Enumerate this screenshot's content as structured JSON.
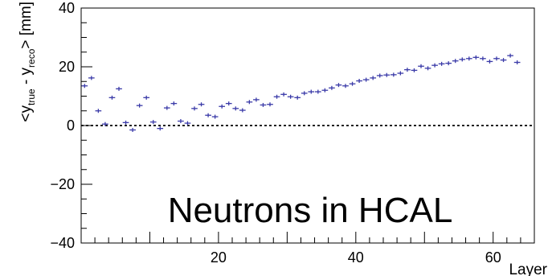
{
  "chart_data": {
    "type": "scatter",
    "title": "",
    "xlabel": "Layer",
    "ylabel": {
      "parts": [
        {
          "text": "<y",
          "sub": false
        },
        {
          "text": "true",
          "sub": true
        },
        {
          "text": " - y",
          "sub": false
        },
        {
          "text": "reco",
          "sub": true
        },
        {
          "text": "> [mm]",
          "sub": false
        }
      ]
    },
    "annotation": "Neutrons in HCAL",
    "xlim": [
      0,
      66
    ],
    "ylim": [
      -40,
      40
    ],
    "x_ticks": [
      {
        "value": 20,
        "label": "20"
      },
      {
        "value": 40,
        "label": "40"
      },
      {
        "value": 60,
        "label": "60"
      }
    ],
    "y_ticks": [
      {
        "value": -40,
        "label": "−40"
      },
      {
        "value": -20,
        "label": "−20"
      },
      {
        "value": 0,
        "label": "0"
      },
      {
        "value": 20,
        "label": "20"
      },
      {
        "value": 40,
        "label": "40"
      }
    ],
    "reference_line": {
      "y": 0,
      "style": "dotted"
    },
    "marker_color": "#3a3aa8",
    "points": [
      {
        "x": 0.5,
        "y": 13.5
      },
      {
        "x": 1.5,
        "y": 16.2
      },
      {
        "x": 2.5,
        "y": 5.0
      },
      {
        "x": 3.5,
        "y": 0.5
      },
      {
        "x": 4.5,
        "y": 9.5
      },
      {
        "x": 5.5,
        "y": 12.5
      },
      {
        "x": 6.5,
        "y": 1.0
      },
      {
        "x": 7.5,
        "y": -1.5
      },
      {
        "x": 8.5,
        "y": 6.8
      },
      {
        "x": 9.5,
        "y": 9.5
      },
      {
        "x": 10.5,
        "y": 1.2
      },
      {
        "x": 11.5,
        "y": -1.0
      },
      {
        "x": 12.5,
        "y": 6.0
      },
      {
        "x": 13.5,
        "y": 7.5
      },
      {
        "x": 14.5,
        "y": 1.5
      },
      {
        "x": 15.5,
        "y": 0.8
      },
      {
        "x": 16.5,
        "y": 5.8
      },
      {
        "x": 17.5,
        "y": 7.2
      },
      {
        "x": 18.5,
        "y": 3.5
      },
      {
        "x": 19.5,
        "y": 3.0
      },
      {
        "x": 20.5,
        "y": 6.5
      },
      {
        "x": 21.5,
        "y": 7.5
      },
      {
        "x": 22.5,
        "y": 5.8
      },
      {
        "x": 23.5,
        "y": 5.2
      },
      {
        "x": 24.5,
        "y": 8.0
      },
      {
        "x": 25.5,
        "y": 8.8
      },
      {
        "x": 26.5,
        "y": 7.0
      },
      {
        "x": 27.5,
        "y": 7.2
      },
      {
        "x": 28.5,
        "y": 9.8
      },
      {
        "x": 29.5,
        "y": 10.6
      },
      {
        "x": 30.5,
        "y": 9.8
      },
      {
        "x": 31.5,
        "y": 9.5
      },
      {
        "x": 32.5,
        "y": 11.0
      },
      {
        "x": 33.5,
        "y": 11.5
      },
      {
        "x": 34.5,
        "y": 11.5
      },
      {
        "x": 35.5,
        "y": 12.0
      },
      {
        "x": 36.5,
        "y": 12.8
      },
      {
        "x": 37.5,
        "y": 13.8
      },
      {
        "x": 38.5,
        "y": 13.5
      },
      {
        "x": 39.5,
        "y": 14.2
      },
      {
        "x": 40.5,
        "y": 15.2
      },
      {
        "x": 41.5,
        "y": 15.6
      },
      {
        "x": 42.5,
        "y": 16.2
      },
      {
        "x": 43.5,
        "y": 17.0
      },
      {
        "x": 44.5,
        "y": 17.2
      },
      {
        "x": 45.5,
        "y": 17.3
      },
      {
        "x": 46.5,
        "y": 17.8
      },
      {
        "x": 47.5,
        "y": 19.0
      },
      {
        "x": 48.5,
        "y": 18.8
      },
      {
        "x": 49.5,
        "y": 20.2
      },
      {
        "x": 50.5,
        "y": 19.5
      },
      {
        "x": 51.5,
        "y": 20.5
      },
      {
        "x": 52.5,
        "y": 21.0
      },
      {
        "x": 53.5,
        "y": 21.2
      },
      {
        "x": 54.5,
        "y": 22.0
      },
      {
        "x": 55.5,
        "y": 22.5
      },
      {
        "x": 56.5,
        "y": 22.8
      },
      {
        "x": 57.5,
        "y": 23.2
      },
      {
        "x": 58.5,
        "y": 22.8
      },
      {
        "x": 59.5,
        "y": 21.8
      },
      {
        "x": 60.5,
        "y": 22.8
      },
      {
        "x": 61.5,
        "y": 22.3
      },
      {
        "x": 62.5,
        "y": 23.8
      },
      {
        "x": 63.5,
        "y": 21.5
      }
    ]
  }
}
